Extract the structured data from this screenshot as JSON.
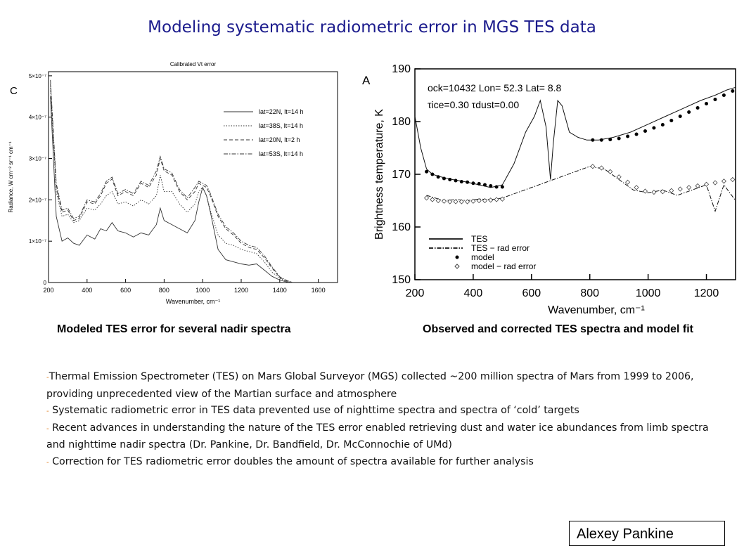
{
  "title": "Modeling systematic radiometric error in MGS TES data",
  "chart_data": [
    {
      "type": "line",
      "panel_label": "C",
      "title": "Calibrated Vt error",
      "xlabel": "Wavenumber, cm⁻¹",
      "ylabel": "Radiance, W cm⁻² sr⁻¹ cm⁻¹",
      "xlim": [
        200,
        1700
      ],
      "ylim": [
        0,
        5.1e-07
      ],
      "x_ticks": [
        "200",
        "400",
        "600",
        "800",
        "1000",
        "1200",
        "1400",
        "1600"
      ],
      "y_ticks": [
        "0",
        "1×10⁻⁷",
        "2×10⁻⁷",
        "3×10⁻⁷",
        "4×10⁻⁷",
        "5×10⁻⁷"
      ],
      "legend_position": "right",
      "x": [
        210,
        240,
        270,
        300,
        330,
        360,
        400,
        440,
        470,
        500,
        530,
        560,
        600,
        640,
        680,
        720,
        760,
        780,
        800,
        840,
        880,
        920,
        960,
        980,
        1000,
        1020,
        1040,
        1080,
        1120,
        1160,
        1200,
        1240,
        1280,
        1320,
        1360,
        1400,
        1440,
        1470
      ],
      "series": [
        {
          "name": "lat=22N, lt=14 h",
          "style": "solid",
          "values": [
            4.5e-07,
            1.6e-07,
            1e-07,
            1.08e-07,
            9.5e-08,
            9e-08,
            1.15e-07,
            1.05e-07,
            1.3e-07,
            1.25e-07,
            1.45e-07,
            1.25e-07,
            1.2e-07,
            1.1e-07,
            1.2e-07,
            1.15e-07,
            1.4e-07,
            1.8e-07,
            1.5e-07,
            1.4e-07,
            1.3e-07,
            1.2e-07,
            1.5e-07,
            1.95e-07,
            2.3e-07,
            2.1e-07,
            1.7e-07,
            8e-08,
            5.5e-08,
            5e-08,
            4.5e-08,
            4.2e-08,
            4.5e-08,
            3e-08,
            1.5e-08,
            6e-09,
            1e-09,
            0
          ]
        },
        {
          "name": "lat=38S, lt=14 h",
          "style": "dotted",
          "values": [
            4.7e-07,
            2.2e-07,
            1.6e-07,
            1.65e-07,
            1.45e-07,
            1.5e-07,
            1.8e-07,
            1.75e-07,
            1.9e-07,
            2.1e-07,
            2.2e-07,
            1.9e-07,
            1.95e-07,
            1.85e-07,
            2e-07,
            1.9e-07,
            2.1e-07,
            2.6e-07,
            2.2e-07,
            2.2e-07,
            1.9e-07,
            1.7e-07,
            1.9e-07,
            2.2e-07,
            2.3e-07,
            2.1e-07,
            1.75e-07,
            1.15e-07,
            9.5e-08,
            9e-08,
            8e-08,
            7.5e-08,
            7e-08,
            5e-08,
            2.5e-08,
            1e-08,
            2e-09,
            0
          ]
        },
        {
          "name": "lat=20N, lt=2 h",
          "style": "dashed",
          "values": [
            4.8e-07,
            2.3e-07,
            1.7e-07,
            1.75e-07,
            1.5e-07,
            1.55e-07,
            1.95e-07,
            1.9e-07,
            2.1e-07,
            2.4e-07,
            2.5e-07,
            2.1e-07,
            2.2e-07,
            2.1e-07,
            2.4e-07,
            2.3e-07,
            2.6e-07,
            3e-07,
            2.7e-07,
            2.6e-07,
            2.2e-07,
            2e-07,
            2.2e-07,
            2.4e-07,
            2.35e-07,
            2.3e-07,
            2.1e-07,
            1.6e-07,
            1.3e-07,
            1.15e-07,
            9.5e-08,
            8.5e-08,
            8e-08,
            6e-08,
            3.5e-08,
            1.2e-08,
            3e-09,
            0
          ]
        },
        {
          "name": "lat=53S, lt=14 h",
          "style": "dashdot",
          "values": [
            4.9e-07,
            2.4e-07,
            1.75e-07,
            1.8e-07,
            1.55e-07,
            1.6e-07,
            2e-07,
            1.95e-07,
            2.15e-07,
            2.45e-07,
            2.55e-07,
            2.15e-07,
            2.25e-07,
            2.15e-07,
            2.45e-07,
            2.35e-07,
            2.7e-07,
            3.05e-07,
            2.75e-07,
            2.65e-07,
            2.25e-07,
            2.05e-07,
            2.3e-07,
            2.45e-07,
            2.4e-07,
            2.35e-07,
            2.15e-07,
            1.65e-07,
            1.35e-07,
            1.2e-07,
            1e-07,
            9e-08,
            8.5e-08,
            6.5e-08,
            3.8e-08,
            1.4e-08,
            4e-09,
            0
          ]
        }
      ]
    },
    {
      "type": "line",
      "panel_label": "A",
      "annotation": "ock=10432  Lon= 52.3  Lat= 8.8",
      "annotation2": "τice=0.30  τdust=0.00",
      "xlabel": "Wavenumber, cm⁻¹",
      "ylabel": "Brightness temperature, K",
      "xlim": [
        200,
        1300
      ],
      "ylim": [
        150,
        190
      ],
      "x_ticks": [
        "200",
        "400",
        "600",
        "800",
        "1000",
        "1200"
      ],
      "y_ticks": [
        "150",
        "160",
        "170",
        "180",
        "190"
      ],
      "legend_position": "bottom-left",
      "series": [
        {
          "name": "TES",
          "style": "solid",
          "x": [
            200,
            220,
            240,
            260,
            290,
            330,
            380,
            420,
            460,
            500,
            540,
            580,
            610,
            630,
            650,
            665,
            675,
            690,
            705,
            730,
            760,
            790,
            830,
            880,
            940,
            1000,
            1060,
            1120,
            1180,
            1230,
            1270,
            1300
          ],
          "values": [
            181,
            175,
            171,
            170,
            169.5,
            169,
            168.5,
            168,
            167.5,
            168,
            172,
            178,
            181,
            184,
            179,
            169,
            176,
            184,
            183,
            178,
            177,
            176.5,
            176.5,
            177,
            178,
            179.5,
            181,
            182.5,
            184,
            185,
            186,
            186.5
          ]
        },
        {
          "name": "TES − rad error",
          "style": "dashdot",
          "x": [
            240,
            270,
            300,
            340,
            380,
            420,
            460,
            500,
            800,
            850,
            900,
            950,
            1000,
            1050,
            1100,
            1150,
            1200,
            1230,
            1260,
            1300
          ],
          "values": [
            166,
            165.5,
            165,
            165.2,
            165,
            165.3,
            165.2,
            165.5,
            171.5,
            171,
            169,
            167,
            166.5,
            167,
            166,
            167,
            168,
            163,
            168,
            165
          ]
        },
        {
          "name": "model",
          "style": "filled-circle",
          "x": [
            240,
            260,
            280,
            300,
            320,
            340,
            360,
            380,
            400,
            420,
            440,
            460,
            480,
            500,
            810,
            840,
            870,
            900,
            930,
            960,
            990,
            1020,
            1050,
            1080,
            1110,
            1140,
            1170,
            1200,
            1230,
            1260,
            1290
          ],
          "values": [
            170.5,
            170,
            169.5,
            169.2,
            169,
            168.8,
            168.6,
            168.5,
            168.3,
            168.2,
            168,
            167.8,
            167.6,
            167.6,
            176.5,
            176.5,
            176.6,
            176.8,
            177.2,
            177.6,
            178.2,
            178.8,
            179.4,
            180.2,
            181,
            181.8,
            182.6,
            183.4,
            184.2,
            185,
            185.8
          ]
        },
        {
          "name": "model − rad error",
          "style": "open-diamond",
          "x": [
            240,
            260,
            280,
            300,
            320,
            340,
            360,
            380,
            400,
            420,
            440,
            460,
            480,
            500,
            810,
            840,
            870,
            900,
            930,
            960,
            990,
            1020,
            1050,
            1080,
            1110,
            1140,
            1170,
            1200,
            1230,
            1260,
            1290
          ],
          "values": [
            165.5,
            165.2,
            165,
            164.9,
            164.8,
            164.8,
            164.8,
            164.8,
            164.9,
            165,
            165,
            165.1,
            165.2,
            165.3,
            171.5,
            171.2,
            170.5,
            169.5,
            168.5,
            167.5,
            166.8,
            166.6,
            166.7,
            166.9,
            167.2,
            167.5,
            167.8,
            168.1,
            168.4,
            168.7,
            169
          ]
        }
      ]
    }
  ],
  "captions": {
    "left": "Modeled TES error for several nadir spectra",
    "right": "Observed and corrected TES spectra and model fit"
  },
  "bullets": [
    "Thermal Emission Spectrometer (TES) on Mars Global Surveyor (MGS) collected ~200 million spectra of Mars from 1999 to 2006, providing unprecedented view of the Martian surface and atmosphere",
    "Systematic radiometric error in TES data prevented use of nighttime spectra and spectra of ‘cold’ targets",
    "Recent advances in understanding the nature of the TES error enabled retrieving dust and water ice abundances from limb spectra and nighttime nadir spectra (Dr. Pankine, Dr. Bandfield, Dr. McConnochie of UMd)",
    "Correction for TES radiometric error doubles the amount of spectra available for further analysis"
  ],
  "bullet_marker": "-",
  "author": "Alexey Pankine"
}
